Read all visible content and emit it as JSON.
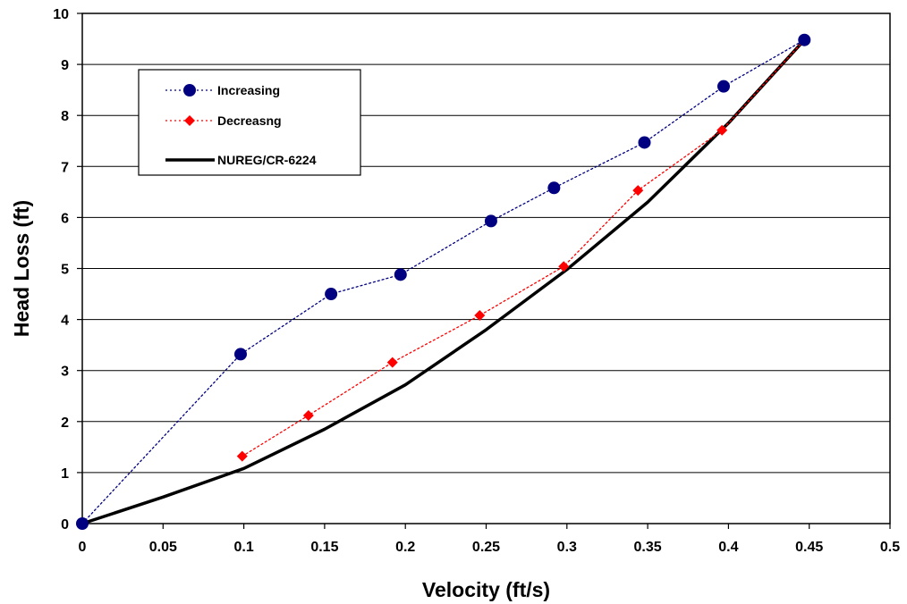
{
  "chart_data": {
    "type": "line",
    "title": "",
    "xlabel": "Velocity (ft/s)",
    "ylabel": "Head Loss (ft)",
    "xlim": [
      0,
      0.5
    ],
    "ylim": [
      0,
      10
    ],
    "x_ticks": [
      0,
      0.05,
      0.1,
      0.15,
      0.2,
      0.25,
      0.3,
      0.35,
      0.4,
      0.45,
      0.5
    ],
    "x_tick_labels": [
      "0",
      "0.05",
      "0.1",
      "0.15",
      "0.2",
      "0.25",
      "0.3",
      "0.35",
      "0.4",
      "0.45",
      "0.5"
    ],
    "y_ticks": [
      0,
      1,
      2,
      3,
      4,
      5,
      6,
      7,
      8,
      9,
      10
    ],
    "y_tick_labels": [
      "0",
      "1",
      "2",
      "3",
      "4",
      "5",
      "6",
      "7",
      "8",
      "9",
      "10"
    ],
    "grid": "horizontal",
    "legend_position": "top-left",
    "series": [
      {
        "name": "Increasing",
        "style": "dotted-line",
        "marker": "circle",
        "color": "#000080",
        "x": [
          0,
          0.098,
          0.154,
          0.197,
          0.253,
          0.292,
          0.348,
          0.397,
          0.447
        ],
        "y": [
          0,
          3.32,
          4.5,
          4.88,
          5.93,
          6.58,
          7.47,
          8.57,
          9.48
        ]
      },
      {
        "name": "Decreasng",
        "style": "dotted-line",
        "marker": "diamond",
        "color": "#ff0000",
        "x": [
          0.099,
          0.14,
          0.192,
          0.246,
          0.298,
          0.344,
          0.396,
          0.447
        ],
        "y": [
          1.32,
          2.12,
          3.16,
          4.08,
          5.04,
          6.53,
          7.71,
          9.48
        ]
      },
      {
        "name": "NUREG/CR-6224",
        "style": "solid-line",
        "marker": "none",
        "color": "#000000",
        "x": [
          0,
          0.05,
          0.1,
          0.15,
          0.2,
          0.25,
          0.3,
          0.35,
          0.4,
          0.447
        ],
        "y": [
          0,
          0.52,
          1.08,
          1.85,
          2.72,
          3.8,
          4.98,
          6.3,
          7.85,
          9.48
        ]
      }
    ]
  }
}
